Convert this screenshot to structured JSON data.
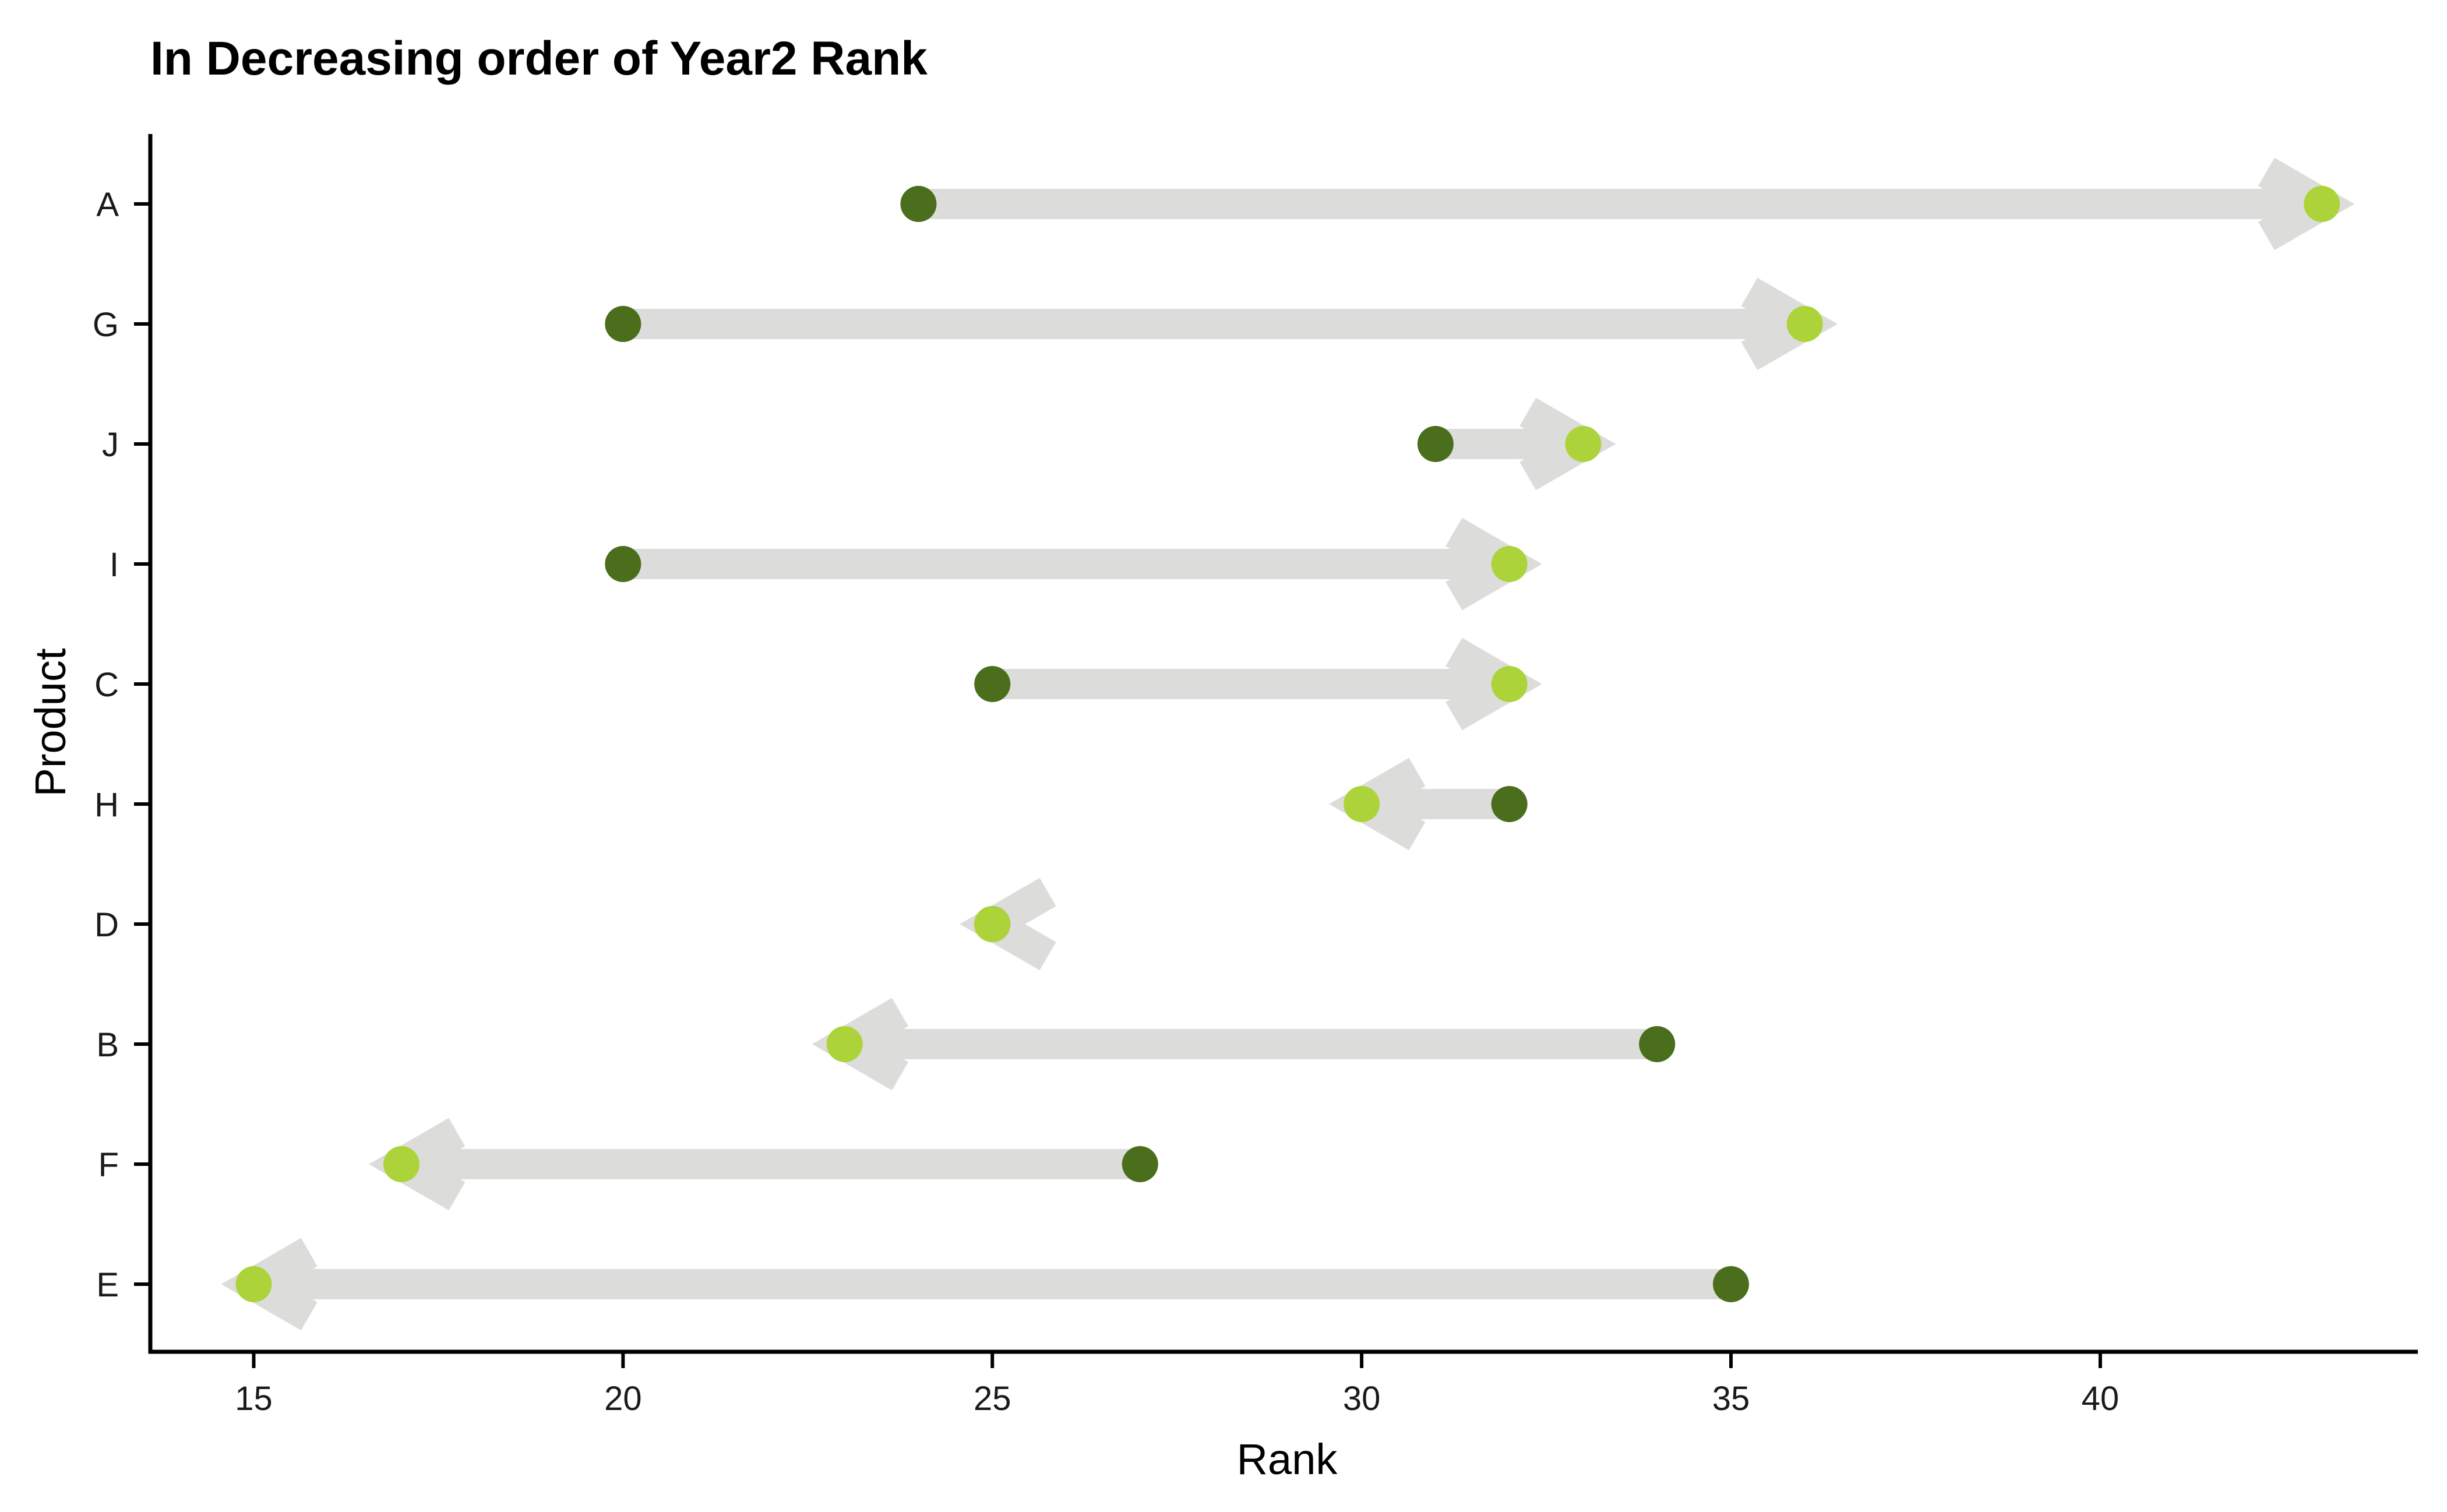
{
  "chart_data": {
    "type": "dumbbell-arrow",
    "title": "In Decreasing order of Year2 Rank",
    "xlabel": "Rank",
    "ylabel": "Product",
    "xlim": [
      13.6,
      44.3
    ],
    "xticks": [
      15,
      20,
      25,
      30,
      35,
      40
    ],
    "categories": [
      "A",
      "G",
      "J",
      "I",
      "C",
      "H",
      "D",
      "B",
      "F",
      "E"
    ],
    "series": [
      {
        "values": [
          24,
          20,
          31,
          20,
          25,
          32,
          25,
          34,
          27,
          35
        ]
      },
      {
        "values": [
          43,
          36,
          33,
          32,
          32,
          30,
          25,
          23,
          17,
          15
        ]
      }
    ],
    "grid": false,
    "legend": "none",
    "colors": {
      "start_point": "#4a6e1c",
      "end_point": "#acd43a",
      "arrow": "#dcdcda",
      "axis": "#000000"
    }
  }
}
